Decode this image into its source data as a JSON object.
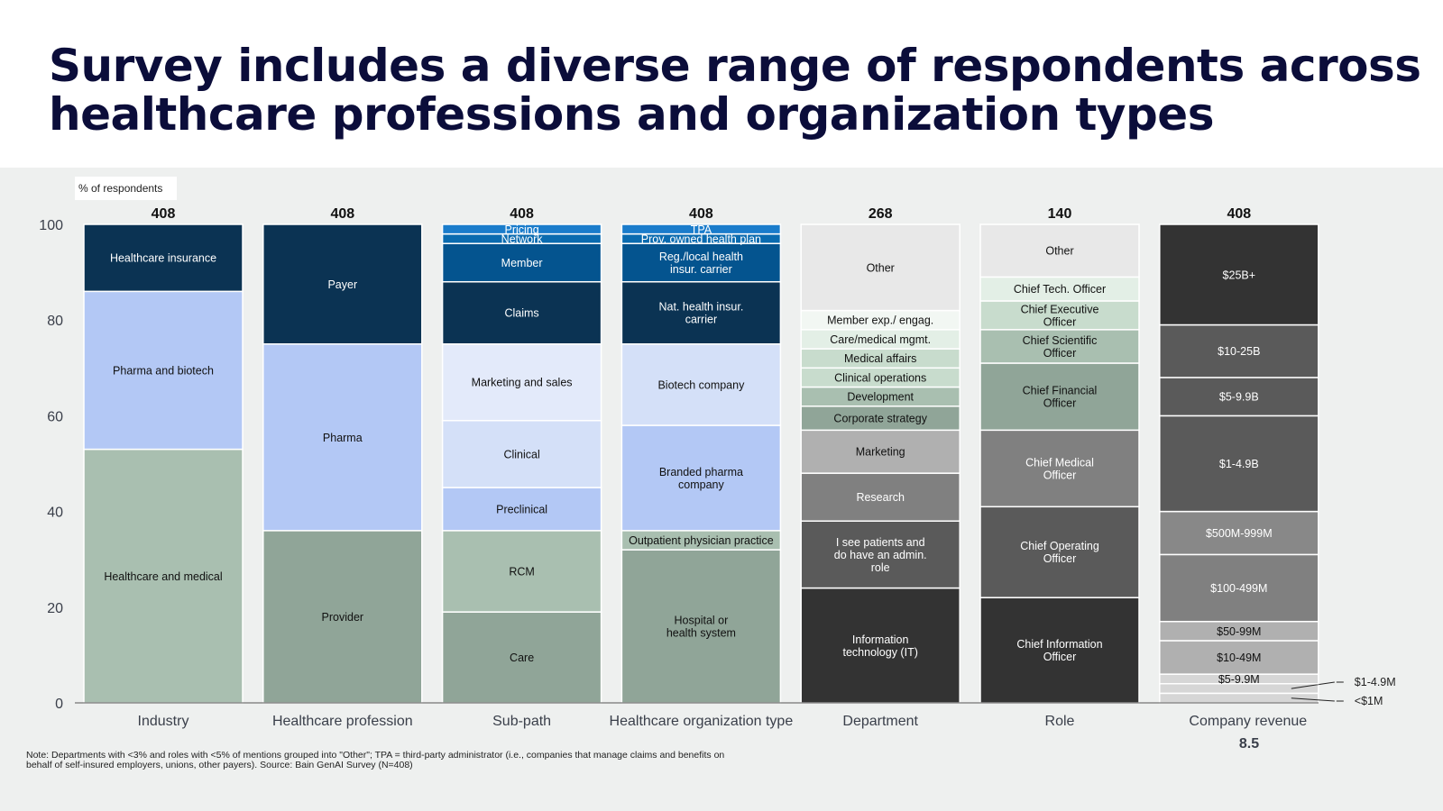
{
  "title": "Survey includes a diverse range of respondents across healthcare professions and organization types",
  "note": "Note: Departments with <3% and roles with <5% of mentions grouped into \"Other\"; TPA = third-party administrator (i.e., companies that manage claims and benefits on behalf of self-insured employers, unions, other payers). Source: Bain GenAI Survey (N=408)",
  "page_number": "8.5",
  "chart_data": {
    "type": "bar",
    "stacked": true,
    "ylabel": "% of respondents",
    "ylim": [
      0,
      100
    ],
    "yticks": [
      0,
      20,
      40,
      60,
      80,
      100
    ],
    "grid": false,
    "bars": [
      {
        "category": "Industry",
        "n": "408",
        "segments": [
          {
            "label": "Healthcare and medical",
            "value": 53,
            "color": "#a9bfb0"
          },
          {
            "label": "Pharma and biotech",
            "value": 33,
            "color": "#b3c8f5"
          },
          {
            "label": "Healthcare insurance",
            "value": 14,
            "color": "#0b3353"
          }
        ]
      },
      {
        "category": "Healthcare profession",
        "n": "408",
        "segments": [
          {
            "label": "Provider",
            "value": 36,
            "color": "#90a598"
          },
          {
            "label": "Pharma",
            "value": 39,
            "color": "#b3c8f5"
          },
          {
            "label": "Payer",
            "value": 25,
            "color": "#0b3353"
          }
        ]
      },
      {
        "category": "Sub-path",
        "n": "408",
        "segments": [
          {
            "label": "Care",
            "value": 19,
            "color": "#90a598"
          },
          {
            "label": "RCM",
            "value": 17,
            "color": "#a9bfb0"
          },
          {
            "label": "Preclinical",
            "value": 9,
            "color": "#b3c8f5"
          },
          {
            "label": "Clinical",
            "value": 14,
            "color": "#d4e0f8"
          },
          {
            "label": "Marketing and sales",
            "value": 16,
            "color": "#e3eafa"
          },
          {
            "label": "Claims",
            "value": 13,
            "color": "#0b3353"
          },
          {
            "label": "Member",
            "value": 8,
            "color": "#04548f"
          },
          {
            "label": "Network",
            "value": 2,
            "color": "#0a6bb0"
          },
          {
            "label": "Pricing",
            "value": 2,
            "color": "#1a7ccb"
          }
        ]
      },
      {
        "category": "Healthcare organization type",
        "n": "408",
        "segments": [
          {
            "label": "Hospital or\nhealth system",
            "value": 32,
            "color": "#90a598"
          },
          {
            "label": "Outpatient physician practice",
            "value": 4,
            "color": "#a9bfb0"
          },
          {
            "label": "Branded pharma\ncompany",
            "value": 22,
            "color": "#b3c8f5"
          },
          {
            "label": "Biotech company",
            "value": 17,
            "color": "#d4e0f8"
          },
          {
            "label": "Nat. health insur.\ncarrier",
            "value": 13,
            "color": "#0b3353"
          },
          {
            "label": "Reg./local health\ninsur. carrier",
            "value": 8,
            "color": "#04548f"
          },
          {
            "label": "Prov. owned health plan",
            "value": 2,
            "color": "#0a6bb0"
          },
          {
            "label": "TPA",
            "value": 2,
            "color": "#1a7ccb"
          }
        ]
      },
      {
        "category": "Department",
        "n": "268",
        "segments": [
          {
            "label": "Information\ntechnology (IT)",
            "value": 24,
            "color": "#333333"
          },
          {
            "label": "I see patients and\ndo have an admin.\nrole",
            "value": 14,
            "color": "#5a5a5a"
          },
          {
            "label": "Research",
            "value": 10,
            "color": "#808080"
          },
          {
            "label": "Marketing",
            "value": 9,
            "color": "#b0b0b0"
          },
          {
            "label": "Corporate strategy",
            "value": 5,
            "color": "#90a598"
          },
          {
            "label": "Development",
            "value": 4,
            "color": "#a9bfb0"
          },
          {
            "label": "Clinical operations",
            "value": 4,
            "color": "#c8dccd"
          },
          {
            "label": "Medical affairs",
            "value": 4,
            "color": "#c8dccd"
          },
          {
            "label": "Care/medical mgmt.",
            "value": 4,
            "color": "#e3efe6"
          },
          {
            "label": "Member exp./ engag.",
            "value": 4,
            "color": "#f2f7f3"
          },
          {
            "label": "Other",
            "value": 18,
            "color": "#e8e8e8"
          }
        ]
      },
      {
        "category": "Role",
        "n": "140",
        "segments": [
          {
            "label": "Chief Information\nOfficer",
            "value": 22,
            "color": "#333333"
          },
          {
            "label": "Chief Operating\nOfficer",
            "value": 19,
            "color": "#5a5a5a"
          },
          {
            "label": "Chief Medical\nOfficer",
            "value": 16,
            "color": "#808080"
          },
          {
            "label": "Chief Financial\nOfficer",
            "value": 14,
            "color": "#90a598"
          },
          {
            "label": "Chief Scientific\nOfficer",
            "value": 7,
            "color": "#a9bfb0"
          },
          {
            "label": "Chief Executive\nOfficer",
            "value": 6,
            "color": "#c8dccd"
          },
          {
            "label": "Chief Tech. Officer",
            "value": 5,
            "color": "#e3efe6"
          },
          {
            "label": "Other",
            "value": 11,
            "color": "#e8e8e8"
          }
        ]
      },
      {
        "category": "Company revenue",
        "n": "408",
        "segments": [
          {
            "label": "<$1M",
            "value": 2,
            "color": "#d6d6d6",
            "outside": true
          },
          {
            "label": "$1-4.9M",
            "value": 2,
            "color": "#d6d6d6",
            "outside": true
          },
          {
            "label": "$5-9.9M",
            "value": 2,
            "color": "#d6d6d6"
          },
          {
            "label": "$10-49M",
            "value": 7,
            "color": "#b0b0b0"
          },
          {
            "label": "$50-99M",
            "value": 4,
            "color": "#b0b0b0"
          },
          {
            "label": "$100-499M",
            "value": 14,
            "color": "#808080"
          },
          {
            "label": "$500M-999M",
            "value": 9,
            "color": "#888888"
          },
          {
            "label": "$1-4.9B",
            "value": 20,
            "color": "#5a5a5a"
          },
          {
            "label": "$5-9.9B",
            "value": 8,
            "color": "#5a5a5a"
          },
          {
            "label": "$10-25B",
            "value": 11,
            "color": "#5a5a5a"
          },
          {
            "label": "$25B+",
            "value": 21,
            "color": "#333333"
          }
        ]
      }
    ]
  }
}
